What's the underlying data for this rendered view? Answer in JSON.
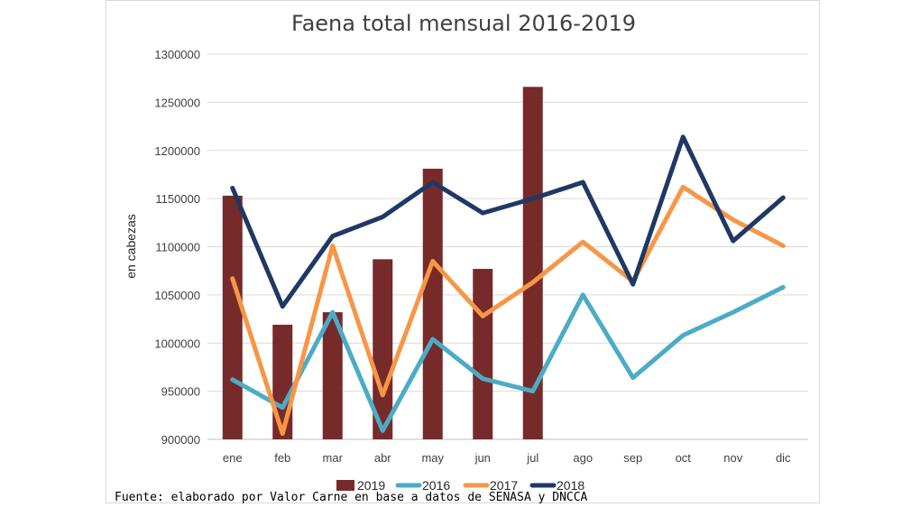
{
  "chart_data": {
    "type": "bar+line",
    "title": "Faena total mensual 2016-2019",
    "ylabel": "en cabezas",
    "xlabel": "",
    "ylim": [
      900000,
      1300000
    ],
    "yticks": [
      900000,
      950000,
      1000000,
      1050000,
      1100000,
      1150000,
      1200000,
      1250000,
      1300000
    ],
    "grid": true,
    "legend_position": "bottom",
    "categories": [
      "ene",
      "feb",
      "mar",
      "abr",
      "may",
      "jun",
      "jul",
      "ago",
      "sep",
      "oct",
      "nov",
      "dic"
    ],
    "series": [
      {
        "name": "2019",
        "kind": "bar",
        "color": "#772a2a",
        "values": [
          1153000,
          1019000,
          1032000,
          1087000,
          1181000,
          1077000,
          1266000,
          null,
          null,
          null,
          null,
          null
        ]
      },
      {
        "name": "2016",
        "kind": "line",
        "color": "#4bacc6",
        "values": [
          962000,
          933000,
          1032000,
          909000,
          1004000,
          963000,
          950000,
          1050000,
          964000,
          1008000,
          1032000,
          1058000
        ]
      },
      {
        "name": "2017",
        "kind": "line",
        "color": "#f79646",
        "values": [
          1067000,
          906000,
          1101000,
          946000,
          1085000,
          1028000,
          1063000,
          1105000,
          1064000,
          1162000,
          1128000,
          1101000
        ]
      },
      {
        "name": "2018",
        "kind": "line",
        "color": "#1f3864",
        "values": [
          1161000,
          1038000,
          1111000,
          1131000,
          1167000,
          1135000,
          1150000,
          1167000,
          1061000,
          1214000,
          1106000,
          1151000
        ]
      }
    ]
  },
  "source_note": "Fuente: elaborado por Valor Carne en base a datos de SENASA y DNCCA"
}
